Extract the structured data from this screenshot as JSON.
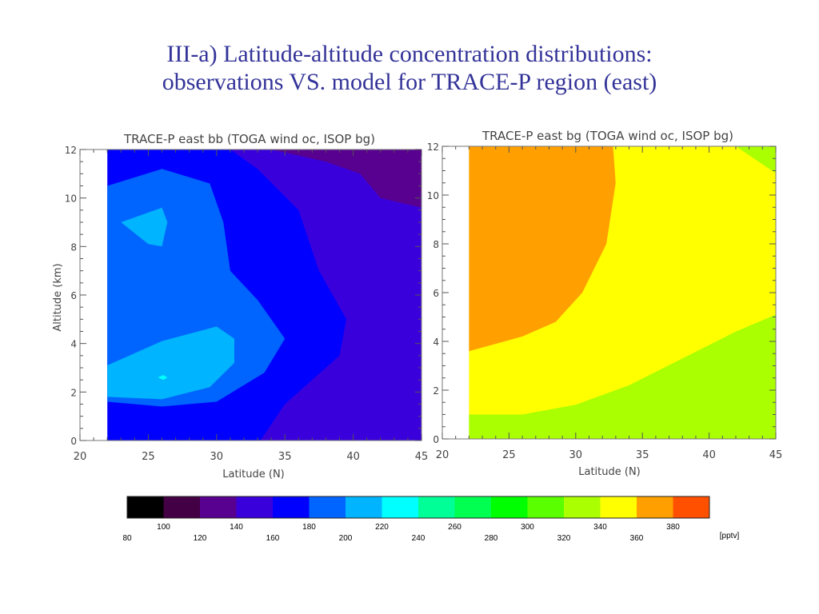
{
  "slide": {
    "title_line1": "III-a)  Latitude-altitude concentration distributions:",
    "title_line2": "observations VS. model for TRACE-P region (east)",
    "title_color": "#333399"
  },
  "chart_data": [
    {
      "type": "heatmap",
      "subtype": "filled-contour",
      "title": "TRACE-P east bb (TOGA wind oc, ISOP bg)",
      "xlabel": "Latitude (N)",
      "ylabel": "Altitude (km)",
      "xlim": [
        20,
        45
      ],
      "ylim": [
        0,
        12
      ],
      "xticks": [
        "20",
        "25",
        "30",
        "35",
        "40",
        "45"
      ],
      "yticks": [
        "0",
        "2",
        "4",
        "6",
        "8",
        "10",
        "12"
      ],
      "data_xrange": [
        22,
        45
      ],
      "regions": [
        {
          "level_range": [
            160,
            180
          ],
          "color": "#0000ff",
          "description": "base layer lower-left / mid"
        },
        {
          "level_range": [
            140,
            160
          ],
          "color": "#3a00dc",
          "description": "east side 33-45N all altitudes"
        },
        {
          "level_range": [
            120,
            140
          ],
          "color": "#580090",
          "description": "upper right 35-45N above ~9.5 km"
        },
        {
          "level_range": [
            180,
            200
          ],
          "color": "#0064ff",
          "description": "west 22-33N, 1-10.5 km"
        },
        {
          "level_range": [
            200,
            220
          ],
          "color": "#00b4ff",
          "description": "maxima near 25N at 9 km and 2-4.5 km"
        },
        {
          "level_range": [
            220,
            240
          ],
          "color": "#00ffff",
          "description": "tiny spot near 26N, 2.5 km"
        }
      ]
    },
    {
      "type": "heatmap",
      "subtype": "filled-contour",
      "title": "TRACE-P east bg (TOGA wind oc, ISOP bg)",
      "xlabel": "Latitude (N)",
      "ylabel": "",
      "xlim": [
        20,
        45
      ],
      "ylim": [
        0,
        12
      ],
      "xticks": [
        "20",
        "25",
        "30",
        "35",
        "40",
        "45"
      ],
      "yticks": [
        "0",
        "2",
        "4",
        "6",
        "8",
        "10",
        "12"
      ],
      "data_xrange": [
        22,
        45
      ],
      "regions": [
        {
          "level_range": [
            340,
            360
          ],
          "color": "#ffff00",
          "description": "background yellow band"
        },
        {
          "level_range": [
            360,
            380
          ],
          "color": "#ffa000",
          "description": "west 22-33N above ~3.5 km"
        },
        {
          "level_range": [
            320,
            340
          ],
          "color": "#aaff00",
          "description": "lower layer below 1-5 km, and upper-right corner"
        }
      ]
    },
    {
      "type": "colorbar",
      "unit_label": "[pptv]",
      "levels_top": [
        "100",
        "140",
        "180",
        "220",
        "260",
        "300",
        "340",
        "380"
      ],
      "levels_bottom": [
        "80",
        "120",
        "160",
        "200",
        "240",
        "280",
        "320",
        "360"
      ],
      "colors": [
        "#000000",
        "#440044",
        "#580090",
        "#3a00dc",
        "#0000ff",
        "#0064ff",
        "#00b4ff",
        "#00ffff",
        "#00ff96",
        "#00ff50",
        "#00ff00",
        "#5aff00",
        "#aaff00",
        "#ffff00",
        "#ffa000",
        "#ff5000"
      ]
    }
  ]
}
